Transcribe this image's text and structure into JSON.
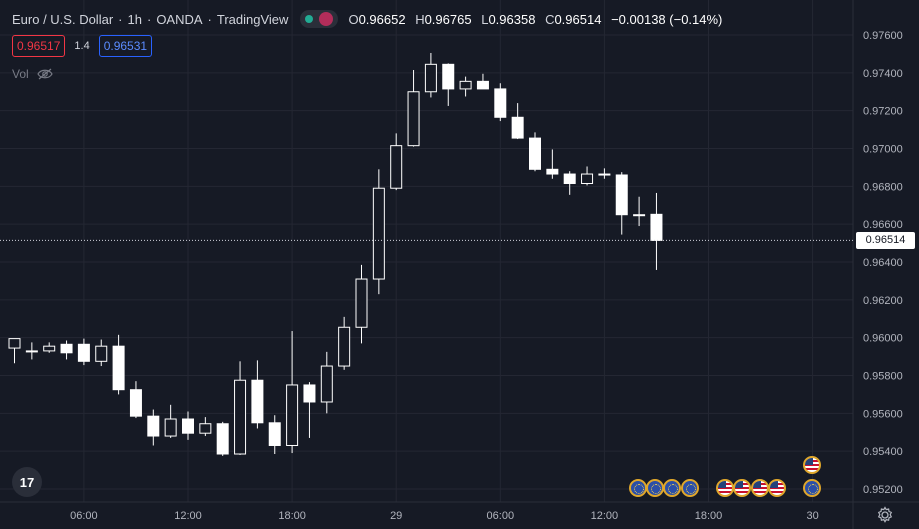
{
  "legend": {
    "symbol": "Euro / U.S. Dollar",
    "interval": "1h",
    "exchange": "OANDA",
    "platform": "TradingView",
    "ohlc": {
      "o_label": "O",
      "o": "0.96652",
      "h_label": "H",
      "h": "0.96765",
      "l_label": "L",
      "l": "0.96358",
      "c_label": "C",
      "c": "0.96514",
      "change": "−0.00138 (−0.14%)"
    }
  },
  "quote": {
    "sell": "0.96517",
    "spread": "1.4",
    "buy": "0.96531"
  },
  "volume_label": "Vol",
  "last_price": "0.96514",
  "chart_data": {
    "type": "candlestick",
    "y_ticks": [
      "0.97600",
      "0.97400",
      "0.97200",
      "0.97000",
      "0.96800",
      "0.96600",
      "0.96400",
      "0.96200",
      "0.96000",
      "0.95800",
      "0.95600",
      "0.95400",
      "0.95200"
    ],
    "ylim": [
      0.9512,
      0.9768
    ],
    "x_ticks": [
      {
        "label": "06:00",
        "index": 4
      },
      {
        "label": "12:00",
        "index": 10
      },
      {
        "label": "18:00",
        "index": 16
      },
      {
        "label": "29",
        "index": 22
      },
      {
        "label": "06:00",
        "index": 28
      },
      {
        "label": "12:00",
        "index": 34
      },
      {
        "label": "18:00",
        "index": 40
      },
      {
        "label": "30",
        "index": 46
      }
    ],
    "candles": [
      {
        "o": 0.95945,
        "h": 0.95995,
        "l": 0.95865,
        "c": 0.95995
      },
      {
        "o": 0.95925,
        "h": 0.95975,
        "l": 0.95885,
        "c": 0.9593
      },
      {
        "o": 0.9593,
        "h": 0.95975,
        "l": 0.9592,
        "c": 0.95955
      },
      {
        "o": 0.95965,
        "h": 0.95985,
        "l": 0.95885,
        "c": 0.9592
      },
      {
        "o": 0.95965,
        "h": 0.95995,
        "l": 0.95855,
        "c": 0.95875
      },
      {
        "o": 0.95875,
        "h": 0.9599,
        "l": 0.9585,
        "c": 0.95955
      },
      {
        "o": 0.95955,
        "h": 0.96015,
        "l": 0.957,
        "c": 0.95725
      },
      {
        "o": 0.95725,
        "h": 0.9577,
        "l": 0.95575,
        "c": 0.95585
      },
      {
        "o": 0.95585,
        "h": 0.9562,
        "l": 0.9543,
        "c": 0.9548
      },
      {
        "o": 0.9548,
        "h": 0.95645,
        "l": 0.9547,
        "c": 0.9557
      },
      {
        "o": 0.9557,
        "h": 0.9561,
        "l": 0.9546,
        "c": 0.95495
      },
      {
        "o": 0.95495,
        "h": 0.9558,
        "l": 0.9548,
        "c": 0.95545
      },
      {
        "o": 0.95545,
        "h": 0.95555,
        "l": 0.95375,
        "c": 0.95385
      },
      {
        "o": 0.95385,
        "h": 0.95875,
        "l": 0.9538,
        "c": 0.95775
      },
      {
        "o": 0.95775,
        "h": 0.9588,
        "l": 0.9552,
        "c": 0.9555
      },
      {
        "o": 0.9555,
        "h": 0.9559,
        "l": 0.95385,
        "c": 0.9543
      },
      {
        "o": 0.9543,
        "h": 0.96035,
        "l": 0.9539,
        "c": 0.9575
      },
      {
        "o": 0.9575,
        "h": 0.95765,
        "l": 0.9547,
        "c": 0.9566
      },
      {
        "o": 0.9566,
        "h": 0.95925,
        "l": 0.956,
        "c": 0.9585
      },
      {
        "o": 0.9585,
        "h": 0.9611,
        "l": 0.9583,
        "c": 0.96055
      },
      {
        "o": 0.96055,
        "h": 0.96385,
        "l": 0.9597,
        "c": 0.9631
      },
      {
        "o": 0.9631,
        "h": 0.9689,
        "l": 0.9623,
        "c": 0.9679
      },
      {
        "o": 0.9679,
        "h": 0.9708,
        "l": 0.9678,
        "c": 0.97015
      },
      {
        "o": 0.97015,
        "h": 0.97415,
        "l": 0.9701,
        "c": 0.973
      },
      {
        "o": 0.973,
        "h": 0.97505,
        "l": 0.9727,
        "c": 0.97445
      },
      {
        "o": 0.97445,
        "h": 0.9745,
        "l": 0.97225,
        "c": 0.97315
      },
      {
        "o": 0.97315,
        "h": 0.9738,
        "l": 0.97275,
        "c": 0.97355
      },
      {
        "o": 0.97355,
        "h": 0.97395,
        "l": 0.9732,
        "c": 0.97315
      },
      {
        "o": 0.97315,
        "h": 0.97345,
        "l": 0.97145,
        "c": 0.97165
      },
      {
        "o": 0.97165,
        "h": 0.9724,
        "l": 0.9705,
        "c": 0.97055
      },
      {
        "o": 0.97055,
        "h": 0.97085,
        "l": 0.9688,
        "c": 0.9689
      },
      {
        "o": 0.9689,
        "h": 0.96995,
        "l": 0.9684,
        "c": 0.96865
      },
      {
        "o": 0.96865,
        "h": 0.9688,
        "l": 0.96755,
        "c": 0.96815
      },
      {
        "o": 0.96815,
        "h": 0.96905,
        "l": 0.96805,
        "c": 0.96865
      },
      {
        "o": 0.96865,
        "h": 0.96895,
        "l": 0.9684,
        "c": 0.96865
      },
      {
        "o": 0.9686,
        "h": 0.96875,
        "l": 0.96545,
        "c": 0.9665
      },
      {
        "o": 0.9665,
        "h": 0.96745,
        "l": 0.9659,
        "c": 0.9665
      },
      {
        "o": 0.96652,
        "h": 0.96765,
        "l": 0.96358,
        "c": 0.96514
      }
    ],
    "grid": true,
    "legend": "none"
  },
  "events": {
    "row1": [
      "eu",
      "eu",
      "eu",
      "eu",
      "us",
      "us",
      "us",
      "us",
      "eu"
    ],
    "row2": [
      "us"
    ]
  }
}
